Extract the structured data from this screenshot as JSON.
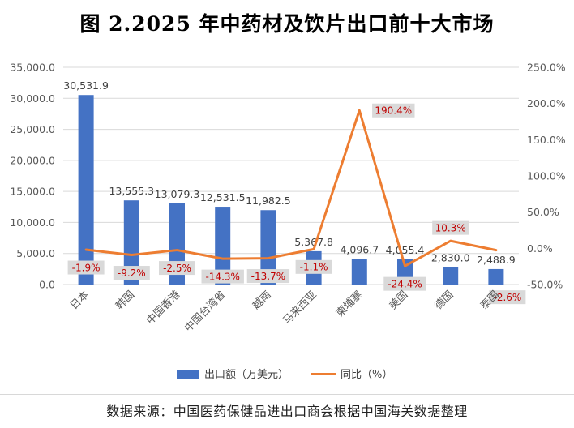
{
  "title": "图 2.2025 年中药材及饮片出口前十大市场",
  "source": "数据来源：中国医药保健品进出口商会根据中国海关数据整理",
  "chart_data": {
    "type": "bar+line",
    "categories": [
      "日本",
      "韩国",
      "中国香港",
      "中国台湾省",
      "越南",
      "马来西亚",
      "柬埔寨",
      "美国",
      "德国",
      "泰国"
    ],
    "series": [
      {
        "name": "出口额（万美元）",
        "type": "bar",
        "axis": "left",
        "color": "#4472c4",
        "values": [
          30531.9,
          13555.3,
          13079.3,
          12531.5,
          11982.5,
          5367.8,
          4096.7,
          4055.4,
          2830.0,
          2488.9
        ],
        "labels": [
          "30,531.9",
          "13,555.3",
          "13,079.3",
          "12,531.5",
          "11,982.5",
          "5,367.8",
          "4,096.7",
          "4,055.4",
          "2,830.0",
          "2,488.9"
        ]
      },
      {
        "name": "同比（%）",
        "type": "line",
        "axis": "right",
        "color": "#ed7d31",
        "values": [
          -1.9,
          -9.2,
          -2.5,
          -14.3,
          -13.7,
          -1.1,
          190.4,
          -24.4,
          10.3,
          -2.6
        ],
        "labels": [
          "-1.9%",
          "-9.2%",
          "-2.5%",
          "-14.3%",
          "-13.7%",
          "-1.1%",
          "190.4%",
          "-24.4%",
          "10.3%",
          "-2.6%"
        ]
      }
    ],
    "y_left": {
      "range": [
        0,
        35000
      ],
      "ticks": [
        0,
        5000,
        10000,
        15000,
        20000,
        25000,
        30000,
        35000
      ],
      "tick_labels": [
        "0.0",
        "5,000.0",
        "10,000.0",
        "15,000.0",
        "20,000.0",
        "25,000.0",
        "30,000.0",
        "35,000.0"
      ]
    },
    "y_right": {
      "range": [
        -50,
        250
      ],
      "ticks": [
        -50,
        0,
        50,
        100,
        150,
        200,
        250
      ],
      "tick_labels": [
        "-50.0%",
        "0.0%",
        "50.0%",
        "100.0%",
        "150.0%",
        "200.0%",
        "250.0%"
      ]
    },
    "grid": true,
    "legend_position": "bottom"
  }
}
